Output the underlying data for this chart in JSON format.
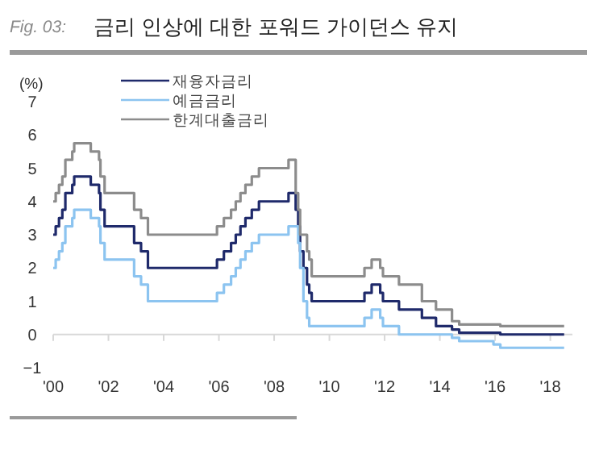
{
  "chart_data": {
    "type": "step",
    "title": "금리 인상에 대한 포워드 가이던스 유지",
    "annotations": [
      "Fig. 03:"
    ],
    "ylabel": "(%)",
    "x": [
      2000.0,
      2000.09,
      2000.21,
      2000.33,
      2000.44,
      2000.69,
      2000.76,
      2001.36,
      2001.66,
      2001.71,
      2001.86,
      2002.93,
      2003.18,
      2003.43,
      2005.93,
      2006.18,
      2006.44,
      2006.61,
      2006.78,
      2006.96,
      2007.19,
      2007.45,
      2008.52,
      2008.78,
      2008.87,
      2008.94,
      2009.06,
      2009.19,
      2009.27,
      2009.36,
      2011.27,
      2011.53,
      2011.84,
      2011.94,
      2012.52,
      2013.35,
      2013.86,
      2014.44,
      2014.7,
      2015.94,
      2016.19,
      2018.5
    ],
    "series": [
      {
        "name": "재융자금리",
        "color": "#1f2a6b",
        "values": [
          3.0,
          3.25,
          3.5,
          3.75,
          4.25,
          4.5,
          4.75,
          4.5,
          4.25,
          3.75,
          3.25,
          2.75,
          2.5,
          2.0,
          2.25,
          2.5,
          2.75,
          3.0,
          3.25,
          3.5,
          3.75,
          4.0,
          4.25,
          3.75,
          3.25,
          2.5,
          2.0,
          1.5,
          1.25,
          1.0,
          1.25,
          1.5,
          1.25,
          1.0,
          0.75,
          0.5,
          0.25,
          0.15,
          0.05,
          0.05,
          0,
          0
        ]
      },
      {
        "name": "예금금리",
        "color": "#8cc4f0",
        "values": [
          2.0,
          2.25,
          2.5,
          2.75,
          3.25,
          3.5,
          3.75,
          3.5,
          3.25,
          2.75,
          2.25,
          1.75,
          1.5,
          1.0,
          1.25,
          1.5,
          1.75,
          2.0,
          2.25,
          2.5,
          2.75,
          3.0,
          3.25,
          3.25,
          2.75,
          2.0,
          1.0,
          0.5,
          0.25,
          0.25,
          0.5,
          0.75,
          0.5,
          0.25,
          0,
          0,
          0,
          -0.1,
          -0.2,
          -0.3,
          -0.4,
          -0.4
        ]
      },
      {
        "name": "한계대출금리",
        "color": "#8c8c8c",
        "values": [
          4.0,
          4.25,
          4.5,
          4.75,
          5.25,
          5.5,
          5.75,
          5.5,
          5.25,
          4.75,
          4.25,
          3.75,
          3.5,
          3.0,
          3.25,
          3.5,
          3.75,
          4.0,
          4.25,
          4.5,
          4.75,
          5.0,
          5.25,
          4.25,
          3.75,
          3.0,
          3.0,
          2.5,
          2.25,
          1.75,
          2.0,
          2.25,
          2.0,
          1.75,
          1.5,
          1.0,
          0.75,
          0.4,
          0.3,
          0.3,
          0.25,
          0.25
        ]
      }
    ],
    "xlim": [
      2000,
      2018.8
    ],
    "xticks": [
      {
        "value": 2000,
        "label": "'00"
      },
      {
        "value": 2002,
        "label": "'02"
      },
      {
        "value": 2004,
        "label": "'04"
      },
      {
        "value": 2006,
        "label": "'06"
      },
      {
        "value": 2008,
        "label": "'08"
      },
      {
        "value": 2010,
        "label": "'10"
      },
      {
        "value": 2012,
        "label": "'12"
      },
      {
        "value": 2014,
        "label": "'14"
      },
      {
        "value": 2016,
        "label": "'16"
      },
      {
        "value": 2018,
        "label": "'18"
      }
    ],
    "ylim": [
      -1,
      7
    ],
    "yticks": [
      {
        "value": -1,
        "label": "−1"
      },
      0,
      1,
      2,
      3,
      4,
      5,
      6,
      7
    ],
    "ref_lines": [
      {
        "axis": "y",
        "value": 0,
        "color": "#d8d8d8"
      }
    ],
    "legend": "top left",
    "line_style": "solid"
  }
}
